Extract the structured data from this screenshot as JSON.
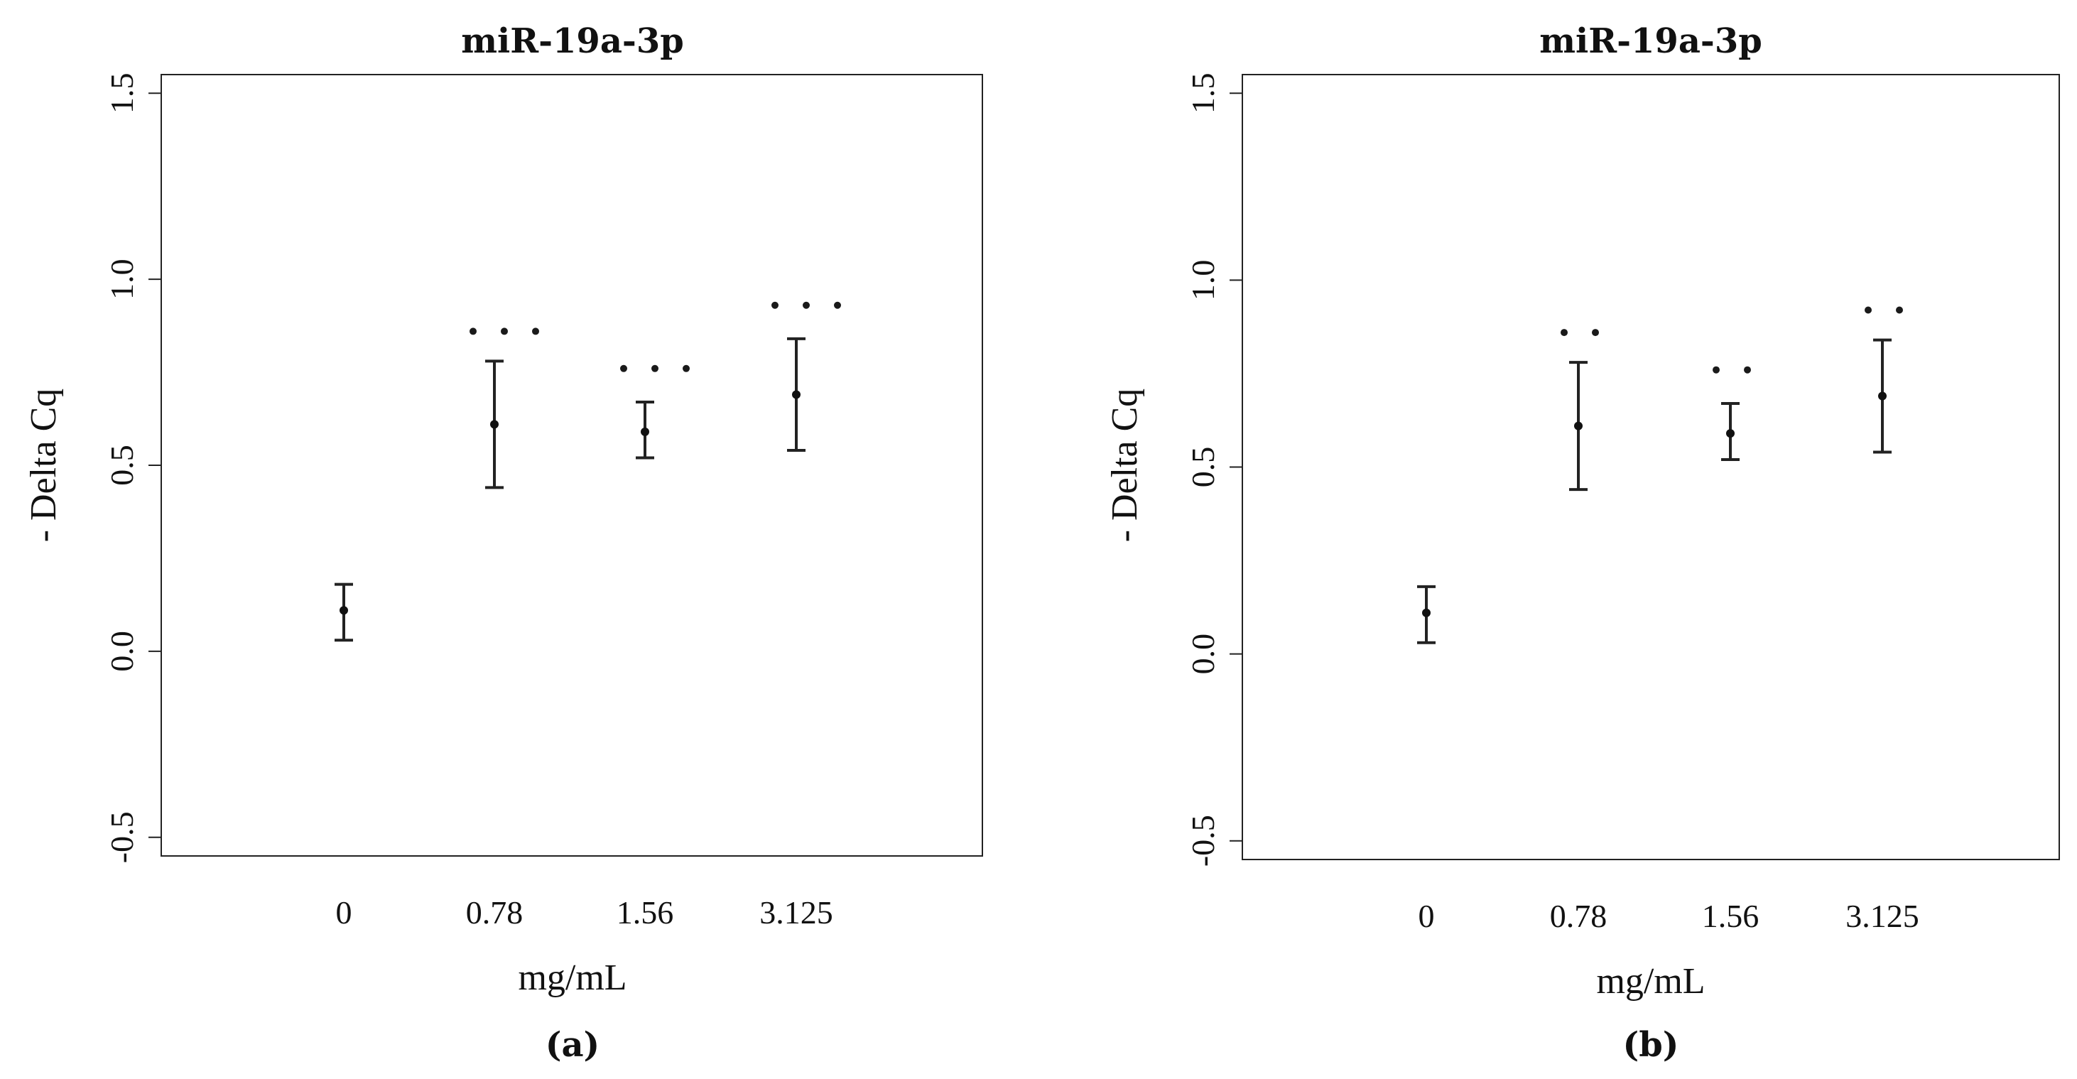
{
  "chart_data": [
    {
      "type": "scatter",
      "panel_label": "(a)",
      "title": "miR-19a-3p",
      "xlabel": "mg/mL",
      "ylabel": "- Delta Cq",
      "categories": [
        "0",
        "0.78",
        "1.56",
        "3.125"
      ],
      "ylim": [
        -0.55,
        1.55
      ],
      "yticks": [
        "-0.5",
        "0.0",
        "0.5",
        "1.0",
        "1.5"
      ],
      "grid": false,
      "series": [
        {
          "means": [
            0.11,
            0.61,
            0.59,
            0.69
          ],
          "err_low": [
            0.03,
            0.44,
            0.52,
            0.54
          ],
          "err_high": [
            0.18,
            0.78,
            0.67,
            0.84
          ],
          "significance": [
            "",
            "* * *",
            "* * *",
            "* * *"
          ],
          "significance_y": [
            null,
            0.86,
            0.76,
            0.93
          ]
        }
      ]
    },
    {
      "type": "scatter",
      "panel_label": "(b)",
      "title": "miR-19a-3p",
      "xlabel": "mg/mL",
      "ylabel": "- Delta Cq",
      "categories": [
        "0",
        "0.78",
        "1.56",
        "3.125"
      ],
      "ylim": [
        -0.55,
        1.55
      ],
      "yticks": [
        "-0.5",
        "0.0",
        "0.5",
        "1.0",
        "1.5"
      ],
      "grid": false,
      "series": [
        {
          "means": [
            0.11,
            0.61,
            0.59,
            0.69
          ],
          "err_low": [
            0.03,
            0.44,
            0.52,
            0.54
          ],
          "err_high": [
            0.18,
            0.78,
            0.67,
            0.84
          ],
          "significance": [
            "",
            "* *",
            "* *",
            "* *"
          ],
          "significance_y": [
            null,
            0.86,
            0.76,
            0.92
          ]
        }
      ]
    }
  ]
}
